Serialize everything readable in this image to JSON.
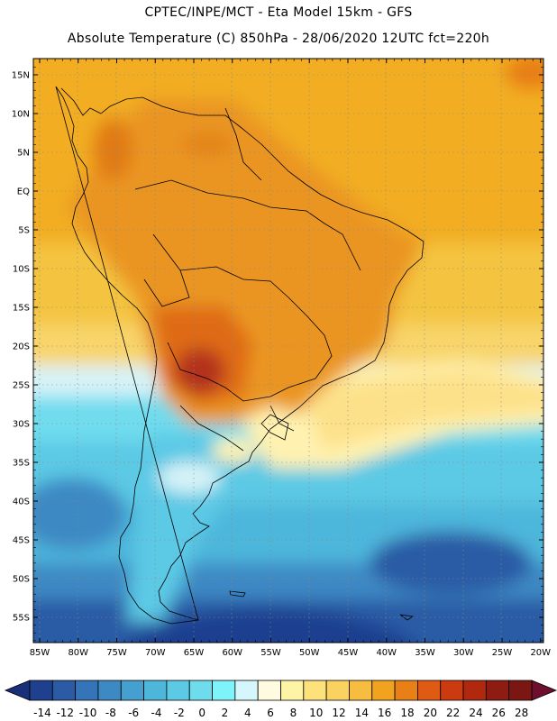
{
  "header": {
    "line1": "CPTEC/INPE/MCT -  Eta Model 15km - GFS",
    "line2": "Absolute Temperature (C) 850hPa - 28/06/2020 12UTC fct=220h"
  },
  "map": {
    "lat_labels": [
      "15N",
      "10N",
      "5N",
      "EQ",
      "5S",
      "10S",
      "15S",
      "20S",
      "25S",
      "30S",
      "35S",
      "40S",
      "45S",
      "50S",
      "55S"
    ],
    "lon_labels": [
      "85W",
      "80W",
      "75W",
      "70W",
      "65W",
      "60W",
      "55W",
      "50W",
      "45W",
      "40W",
      "35W",
      "30W",
      "25W",
      "20W"
    ]
  },
  "colorbar": {
    "labels": [
      "-14",
      "-12",
      "-10",
      "-8",
      "-6",
      "-4",
      "-2",
      "0",
      "2",
      "4",
      "6",
      "8",
      "10",
      "12",
      "14",
      "16",
      "18",
      "20",
      "22",
      "24",
      "26",
      "28"
    ],
    "colors": [
      "#1f3f8f",
      "#2b5ba5",
      "#3574b8",
      "#3d89c4",
      "#45a0cf",
      "#4eb6db",
      "#5cc9e5",
      "#6fdcee",
      "#7ff3fa",
      "#d5f6fb",
      "#fffbe0",
      "#fef4a6",
      "#fde17a",
      "#fbd160",
      "#f7bd41",
      "#f1a31f",
      "#e87f17",
      "#df5a12",
      "#cc3b0f",
      "#b0280e",
      "#8f1c12",
      "#7a1712"
    ],
    "left_arrow_color": "#1a2f7a",
    "right_arrow_color": "#6e0f2e"
  }
}
